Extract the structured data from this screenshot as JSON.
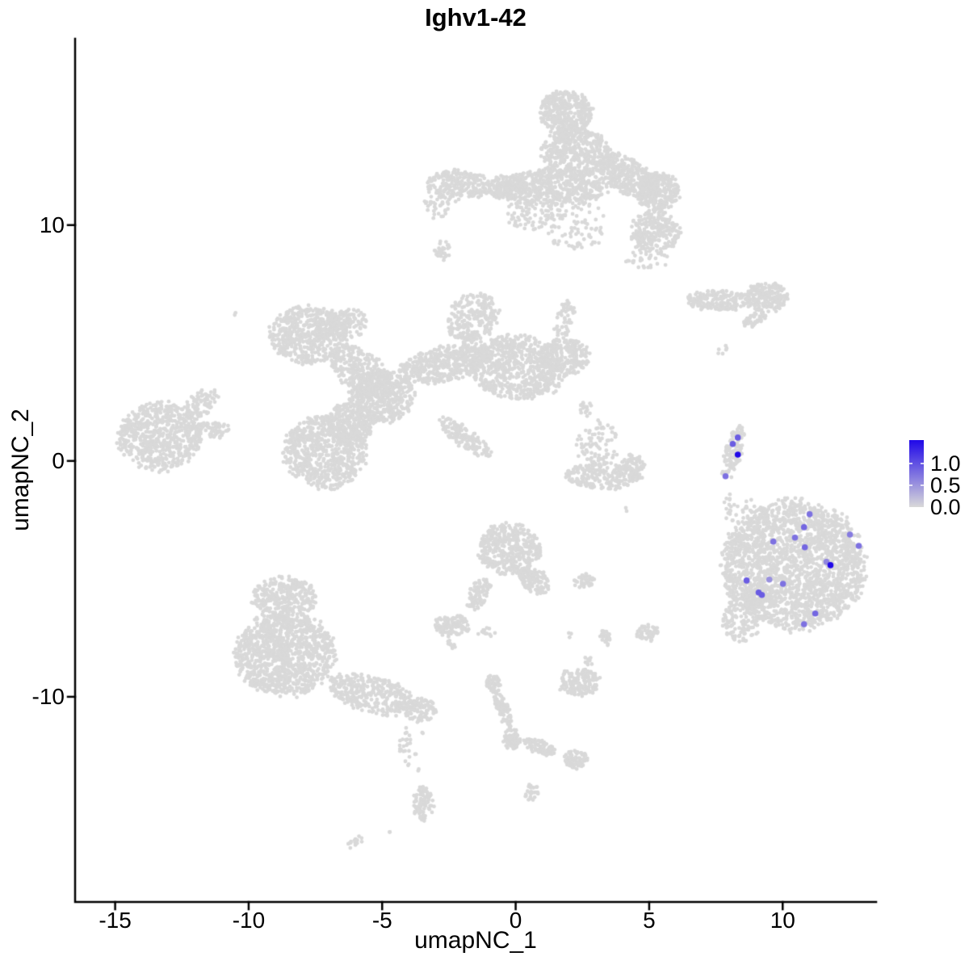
{
  "chart_data": {
    "type": "scatter",
    "title": "Ighv1-42",
    "xlabel": "umapNC_1",
    "ylabel": "umapNC_2",
    "xlim": [
      -16.5,
      13.5
    ],
    "ylim": [
      -18.7,
      17.9
    ],
    "x_ticks": [
      -15,
      -10,
      -5,
      0,
      5,
      10
    ],
    "y_ticks": [
      10,
      0,
      -10
    ],
    "grid": false,
    "background_color": "#ffffff",
    "axis_color": "#000000",
    "point_style": {
      "base_color": "#d9d9d9",
      "base_radius": 2.4,
      "highlight_radius": 3.8
    },
    "legend": {
      "position": "right",
      "labels": [
        "1.0",
        "0.5",
        "0.0"
      ],
      "values": [
        1.0,
        0.5,
        0.0
      ],
      "bar_max_value": 1.55,
      "high_color": "#2008e8",
      "low_color": "#d9d9d9"
    },
    "cluster_format": "each cluster: {x,y} center in data coords, {rx,ry} radii in data units, rot degrees clockwise, n points",
    "background_clusters": [
      {
        "x": 1.87,
        "y": 14.76,
        "rx": 0.97,
        "ry": 0.96,
        "rot": 0,
        "n": 350
      },
      {
        "x": 2.24,
        "y": 13.05,
        "rx": 1.27,
        "ry": 1.1,
        "rot": 0,
        "n": 450
      },
      {
        "x": 1.42,
        "y": 11.61,
        "rx": 2.12,
        "ry": 0.75,
        "rot": 0,
        "n": 500
      },
      {
        "x": -2.12,
        "y": 11.68,
        "rx": 1.21,
        "ry": 0.62,
        "rot": 0,
        "n": 220
      },
      {
        "x": -0.33,
        "y": 11.61,
        "rx": 0.85,
        "ry": 0.48,
        "rot": 0,
        "n": 150
      },
      {
        "x": 4.14,
        "y": 12.09,
        "rx": 1.27,
        "ry": 0.75,
        "rot": 30,
        "n": 350
      },
      {
        "x": 5.35,
        "y": 11.4,
        "rx": 0.79,
        "ry": 0.82,
        "rot": 0,
        "n": 250
      },
      {
        "x": 5.26,
        "y": 9.73,
        "rx": 0.91,
        "ry": 0.89,
        "rot": 0,
        "n": 250
      },
      {
        "x": 2.24,
        "y": 10.03,
        "rx": 1.21,
        "ry": 1.03,
        "rot": 0,
        "n": 90
      },
      {
        "x": 4.9,
        "y": 8.66,
        "rx": 0.85,
        "ry": 0.48,
        "rot": 0,
        "n": 40
      },
      {
        "x": 0.51,
        "y": 10.48,
        "rx": 0.91,
        "ry": 0.68,
        "rot": 0,
        "n": 80
      },
      {
        "x": -2.96,
        "y": 10.82,
        "rx": 0.45,
        "ry": 0.62,
        "rot": 0,
        "n": 30
      },
      {
        "x": -7.74,
        "y": 5.34,
        "rx": 1.45,
        "ry": 1.2,
        "rot": 0,
        "n": 550
      },
      {
        "x": -5.75,
        "y": 3.73,
        "rx": 1.36,
        "ry": 0.86,
        "rot": 40,
        "n": 350
      },
      {
        "x": -5.02,
        "y": 2.71,
        "rx": 1.21,
        "ry": 1.1,
        "rot": 0,
        "n": 450
      },
      {
        "x": -7.14,
        "y": 0.38,
        "rx": 1.57,
        "ry": 1.54,
        "rot": 0,
        "n": 700
      },
      {
        "x": -6.23,
        "y": 1.58,
        "rx": 0.91,
        "ry": 0.86,
        "rot": 0,
        "n": 250
      },
      {
        "x": -2.72,
        "y": 4.08,
        "rx": 1.75,
        "ry": 0.75,
        "rot": -12,
        "n": 450
      },
      {
        "x": 0.0,
        "y": 3.97,
        "rx": 1.66,
        "ry": 1.37,
        "rot": 0,
        "n": 650
      },
      {
        "x": -1.6,
        "y": 6.03,
        "rx": 0.85,
        "ry": 1.2,
        "rot": 35,
        "n": 250
      },
      {
        "x": 1.87,
        "y": 4.42,
        "rx": 0.91,
        "ry": 0.75,
        "rot": 0,
        "n": 220
      },
      {
        "x": -1.9,
        "y": 0.99,
        "rx": 1.15,
        "ry": 0.41,
        "rot": 35,
        "n": 150
      },
      {
        "x": 1.81,
        "y": 5.92,
        "rx": 0.3,
        "ry": 1.03,
        "rot": 18,
        "n": 60
      },
      {
        "x": 1.03,
        "y": 3.46,
        "rx": 0.76,
        "ry": 0.68,
        "rot": 0,
        "n": 60
      },
      {
        "x": -6.29,
        "y": 5.86,
        "rx": 0.76,
        "ry": 0.62,
        "rot": 0,
        "n": 120
      },
      {
        "x": -13.34,
        "y": 1.06,
        "rx": 1.57,
        "ry": 1.44,
        "rot": 0,
        "n": 600
      },
      {
        "x": -11.79,
        "y": 2.43,
        "rx": 0.76,
        "ry": 0.48,
        "rot": -38,
        "n": 90
      },
      {
        "x": -11.37,
        "y": 1.3,
        "rx": 0.67,
        "ry": 0.34,
        "rot": 0,
        "n": 70
      },
      {
        "x": 3.02,
        "y": 0.72,
        "rx": 0.85,
        "ry": 1.03,
        "rot": 0,
        "n": 80
      },
      {
        "x": 3.24,
        "y": -0.65,
        "rx": 1.45,
        "ry": 0.55,
        "rot": 0,
        "n": 220
      },
      {
        "x": 4.38,
        "y": -0.14,
        "rx": 0.42,
        "ry": 0.41,
        "rot": 0,
        "n": 60
      },
      {
        "x": 2.63,
        "y": 2.26,
        "rx": 0.24,
        "ry": 0.41,
        "rot": 0,
        "n": 18
      },
      {
        "x": 8.16,
        "y": 0.38,
        "rx": 0.3,
        "ry": 1.2,
        "rot": 16,
        "n": 120
      },
      {
        "x": 7.95,
        "y": -1.85,
        "rx": 0.15,
        "ry": 0.48,
        "rot": 0,
        "n": 10
      },
      {
        "x": 10.43,
        "y": -4.42,
        "rx": 2.66,
        "ry": 2.74,
        "rot": 0,
        "n": 2200
      },
      {
        "x": 8.68,
        "y": -2.71,
        "rx": 0.85,
        "ry": 1.03,
        "rot": 0,
        "n": 70
      },
      {
        "x": 8.47,
        "y": -6.64,
        "rx": 0.76,
        "ry": 1.03,
        "rot": 0,
        "n": 140
      },
      {
        "x": -8.65,
        "y": -5.79,
        "rx": 1.21,
        "ry": 0.86,
        "rot": 0,
        "n": 300
      },
      {
        "x": -8.65,
        "y": -8.18,
        "rx": 1.87,
        "ry": 1.78,
        "rot": 0,
        "n": 1100
      },
      {
        "x": -5.38,
        "y": -9.9,
        "rx": 1.66,
        "ry": 0.75,
        "rot": 15,
        "n": 350
      },
      {
        "x": -3.57,
        "y": -10.58,
        "rx": 0.6,
        "ry": 0.48,
        "rot": 0,
        "n": 100
      },
      {
        "x": -4.11,
        "y": -12.12,
        "rx": 0.24,
        "ry": 0.86,
        "rot": 0,
        "n": 25
      },
      {
        "x": -0.24,
        "y": -3.73,
        "rx": 1.15,
        "ry": 1.1,
        "rot": 0,
        "n": 400
      },
      {
        "x": 0.73,
        "y": -5.1,
        "rx": 0.6,
        "ry": 0.48,
        "rot": 35,
        "n": 120
      },
      {
        "x": -1.39,
        "y": -5.62,
        "rx": 0.36,
        "ry": 0.75,
        "rot": 25,
        "n": 80
      },
      {
        "x": -2.36,
        "y": -6.99,
        "rx": 0.67,
        "ry": 0.45,
        "rot": 0,
        "n": 110
      },
      {
        "x": -2.36,
        "y": -7.74,
        "rx": 0.24,
        "ry": 0.21,
        "rot": 0,
        "n": 12
      },
      {
        "x": -1.09,
        "y": -7.26,
        "rx": 0.3,
        "ry": 0.21,
        "rot": 0,
        "n": 12
      },
      {
        "x": 2.57,
        "y": -5.07,
        "rx": 0.42,
        "ry": 0.27,
        "rot": 0,
        "n": 40
      },
      {
        "x": 3.36,
        "y": -7.5,
        "rx": 0.24,
        "ry": 0.34,
        "rot": 0,
        "n": 22
      },
      {
        "x": 2.06,
        "y": -7.36,
        "rx": 0.09,
        "ry": 0.09,
        "rot": 0,
        "n": 3
      },
      {
        "x": 4.96,
        "y": -7.29,
        "rx": 0.42,
        "ry": 0.34,
        "rot": 0,
        "n": 50
      },
      {
        "x": 2.36,
        "y": -9.38,
        "rx": 0.79,
        "ry": 0.55,
        "rot": 0,
        "n": 160
      },
      {
        "x": 2.72,
        "y": -8.53,
        "rx": 0.24,
        "ry": 0.21,
        "rot": 0,
        "n": 10
      },
      {
        "x": -0.85,
        "y": -9.42,
        "rx": 0.27,
        "ry": 0.34,
        "rot": 0,
        "n": 40
      },
      {
        "x": -0.48,
        "y": -10.51,
        "rx": 0.21,
        "ry": 0.89,
        "rot": -22,
        "n": 90
      },
      {
        "x": -0.15,
        "y": -11.78,
        "rx": 0.3,
        "ry": 0.48,
        "rot": 0,
        "n": 70
      },
      {
        "x": 0.91,
        "y": -12.12,
        "rx": 0.67,
        "ry": 0.27,
        "rot": 20,
        "n": 80
      },
      {
        "x": 2.24,
        "y": -12.64,
        "rx": 0.42,
        "ry": 0.38,
        "rot": 0,
        "n": 80
      },
      {
        "x": -3.45,
        "y": -14.52,
        "rx": 0.36,
        "ry": 0.75,
        "rot": 0,
        "n": 90
      },
      {
        "x": -3.78,
        "y": -12.4,
        "rx": 0.06,
        "ry": 0.06,
        "rot": 0,
        "n": 2
      },
      {
        "x": -3.69,
        "y": -13.08,
        "rx": 0.06,
        "ry": 0.06,
        "rot": 0,
        "n": 2
      },
      {
        "x": -4.75,
        "y": -15.65,
        "rx": 0.06,
        "ry": 0.06,
        "rot": 0,
        "n": 2
      },
      {
        "x": -5.99,
        "y": -16.16,
        "rx": 0.3,
        "ry": 0.17,
        "rot": -30,
        "n": 15
      },
      {
        "x": 0.6,
        "y": -14.04,
        "rx": 0.27,
        "ry": 0.34,
        "rot": 0,
        "n": 30
      },
      {
        "x": 7.56,
        "y": 6.81,
        "rx": 1.21,
        "ry": 0.41,
        "rot": 0,
        "n": 180
      },
      {
        "x": 9.37,
        "y": 6.95,
        "rx": 0.79,
        "ry": 0.62,
        "rot": 0,
        "n": 200
      },
      {
        "x": 8.95,
        "y": 5.99,
        "rx": 0.48,
        "ry": 0.24,
        "rot": -30,
        "n": 50
      },
      {
        "x": 7.77,
        "y": 4.76,
        "rx": 0.24,
        "ry": 0.27,
        "rot": 0,
        "n": 6
      },
      {
        "x": -10.52,
        "y": 6.2,
        "rx": 0.06,
        "ry": 0.06,
        "rot": 0,
        "n": 2
      },
      {
        "x": 4.14,
        "y": -2.02,
        "rx": 0.06,
        "ry": 0.06,
        "rot": 0,
        "n": 2
      },
      {
        "x": -3.48,
        "y": -11.54,
        "rx": 0.06,
        "ry": 0.06,
        "rot": 0,
        "n": 2
      },
      {
        "x": -2.72,
        "y": 8.94,
        "rx": 0.3,
        "ry": 0.41,
        "rot": 0,
        "n": 30
      }
    ],
    "expressing_cells": [
      {
        "x": 8.32,
        "y": 0.99,
        "value": 0.6
      },
      {
        "x": 8.13,
        "y": 0.72,
        "value": 0.6
      },
      {
        "x": 8.32,
        "y": 0.27,
        "value": 1.0
      },
      {
        "x": 7.86,
        "y": -0.65,
        "value": 0.5
      },
      {
        "x": 11.01,
        "y": -2.26,
        "value": 0.5
      },
      {
        "x": 10.8,
        "y": -2.81,
        "value": 0.55
      },
      {
        "x": 10.46,
        "y": -3.25,
        "value": 0.5
      },
      {
        "x": 9.65,
        "y": -3.42,
        "value": 0.5
      },
      {
        "x": 10.83,
        "y": -3.66,
        "value": 0.55
      },
      {
        "x": 12.52,
        "y": -3.12,
        "value": 0.45
      },
      {
        "x": 12.85,
        "y": -3.6,
        "value": 0.5
      },
      {
        "x": 11.64,
        "y": -4.28,
        "value": 0.4
      },
      {
        "x": 11.79,
        "y": -4.42,
        "value": 1.0
      },
      {
        "x": 8.65,
        "y": -5.07,
        "value": 0.6
      },
      {
        "x": 9.5,
        "y": -5.03,
        "value": 0.35
      },
      {
        "x": 10.01,
        "y": -5.21,
        "value": 0.5
      },
      {
        "x": 9.1,
        "y": -5.58,
        "value": 0.6
      },
      {
        "x": 9.22,
        "y": -5.68,
        "value": 0.6
      },
      {
        "x": 11.22,
        "y": -6.47,
        "value": 0.55
      },
      {
        "x": 10.8,
        "y": -6.92,
        "value": 0.5
      }
    ]
  }
}
